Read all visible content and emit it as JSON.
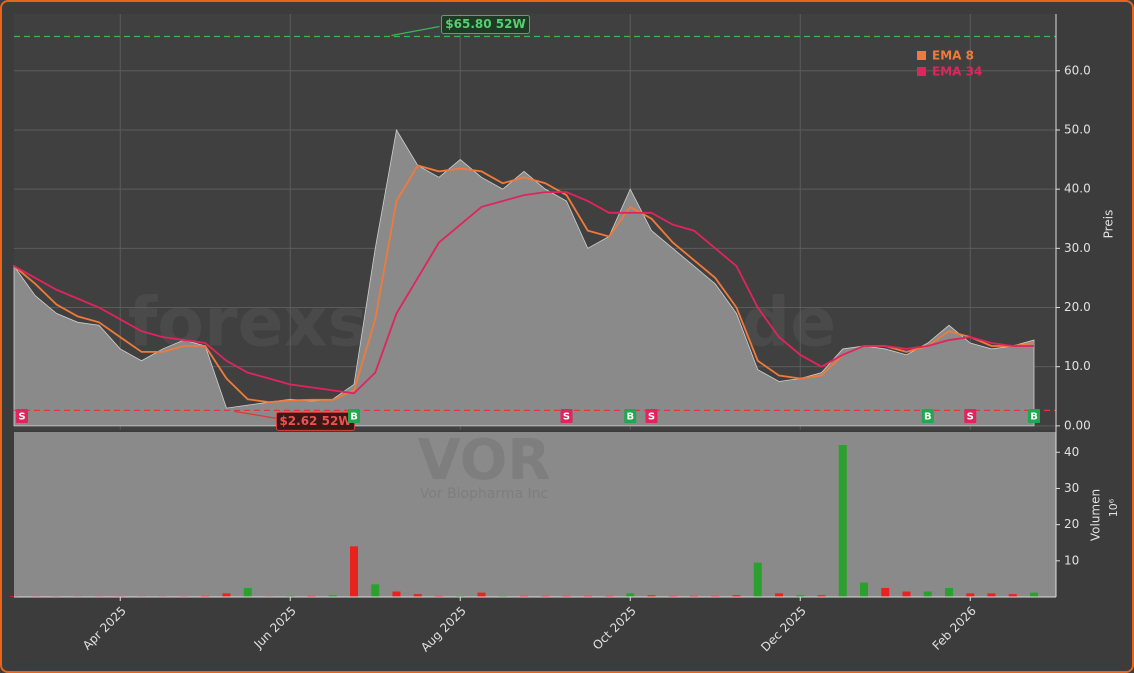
{
  "chart_data": {
    "type": "line",
    "watermark": "forexsignale.trade",
    "ticker": "VOR",
    "company": "Vor Biopharma Inc",
    "categories": [
      null,
      null,
      null,
      null,
      null,
      "Apr 2025",
      null,
      null,
      null,
      null,
      null,
      null,
      null,
      "Jun 2025",
      null,
      null,
      null,
      null,
      null,
      null,
      null,
      "Aug 2025",
      null,
      null,
      null,
      null,
      null,
      null,
      null,
      "Oct 2025",
      null,
      null,
      null,
      null,
      null,
      null,
      null,
      "Dec 2025",
      null,
      null,
      null,
      null,
      null,
      null,
      null,
      "Feb 2026",
      null,
      null,
      null
    ],
    "values": [
      27,
      22,
      19,
      17.5,
      17,
      13,
      11,
      13,
      14.5,
      13.5,
      3,
      3.5,
      4,
      4.5,
      4.2,
      4.5,
      7,
      30,
      50,
      44,
      42,
      45,
      42,
      40,
      43,
      40,
      38,
      30,
      32,
      40,
      33,
      30,
      27,
      24,
      19,
      9.5,
      7.5,
      8,
      9,
      13,
      13.5,
      13,
      12,
      14,
      17,
      14,
      13,
      13.5,
      14.5
    ],
    "color": "#8a8a8a",
    "series": [
      {
        "name": "EMA 8",
        "color": "#f07a3a",
        "values": [
          27,
          24,
          20.5,
          18.5,
          17.5,
          15,
          12.5,
          12.5,
          13.5,
          13.5,
          8,
          4.5,
          4,
          4.3,
          4.4,
          4.4,
          6,
          18,
          38,
          44,
          43,
          43.5,
          43,
          41,
          42,
          41,
          39,
          33,
          32,
          37,
          35,
          31,
          28,
          25,
          20,
          11,
          8.5,
          8,
          8.5,
          12,
          13.5,
          13.5,
          12.5,
          13.5,
          16,
          15,
          13.5,
          13.5,
          14
        ]
      },
      {
        "name": "EMA 34",
        "color": "#e0245e",
        "values": [
          27,
          25,
          23,
          21.5,
          20,
          18,
          16,
          15,
          14.5,
          14,
          11,
          9,
          8,
          7,
          6.5,
          6,
          5.5,
          9,
          19,
          25,
          31,
          34,
          37,
          38,
          39,
          39.5,
          39.5,
          38,
          36,
          36,
          36,
          34,
          33,
          30,
          27,
          20,
          15,
          12,
          10,
          12,
          13.5,
          13.5,
          13,
          13.5,
          14.5,
          15,
          14,
          13.5,
          13.5
        ]
      }
    ],
    "signals": [
      "S",
      null,
      null,
      null,
      null,
      null,
      null,
      null,
      null,
      null,
      null,
      null,
      null,
      null,
      null,
      null,
      "B",
      null,
      null,
      null,
      null,
      null,
      null,
      null,
      null,
      null,
      "S",
      null,
      null,
      "B",
      "S",
      null,
      null,
      null,
      null,
      null,
      null,
      null,
      null,
      null,
      null,
      null,
      null,
      "B",
      null,
      "S",
      null,
      null,
      "B"
    ],
    "high": {
      "value": 65.8,
      "label": "$65.80 52W"
    },
    "low": {
      "value": 2.62,
      "label": "$2.62 52W"
    },
    "ylabel": "Preis",
    "ylim": [
      -0.7,
      69.6
    ],
    "yticks": [
      {
        "value": 0,
        "label": "0.00"
      },
      {
        "value": 10,
        "label": "10.0"
      },
      {
        "value": 20,
        "label": "20.0"
      },
      {
        "value": 30,
        "label": "30.0"
      },
      {
        "value": 40,
        "label": "40.0"
      },
      {
        "value": 50,
        "label": "50.0"
      },
      {
        "value": 60,
        "label": "60.0"
      }
    ],
    "grid": true,
    "legend": "upper right",
    "volume": {
      "ylabel": "Volumen",
      "scale_label": "10⁶",
      "ylim": [
        0,
        45.6
      ],
      "yticks": [
        10,
        20,
        30,
        40
      ],
      "values": [
        0.2,
        0.2,
        0.2,
        0.2,
        0.2,
        0.2,
        0.2,
        0.2,
        0.2,
        0.3,
        1,
        2.5,
        0.2,
        0.3,
        0.3,
        0.5,
        14,
        3.5,
        1.5,
        0.8,
        0.3,
        0.3,
        1.2,
        0.3,
        0.3,
        0.3,
        0.3,
        0.3,
        0.3,
        1,
        0.5,
        0.3,
        0.3,
        0.3,
        0.5,
        9.5,
        1,
        0.5,
        0.5,
        42,
        4,
        2.5,
        1.5,
        1.5,
        2.5,
        1,
        1,
        0.8,
        1.2
      ],
      "colors": [
        "#e8221c",
        "#e8221c",
        "#e8221c",
        "#e8221c",
        "#e8221c",
        "#e8221c",
        "#e8221c",
        "#e8221c",
        "#e8221c",
        "#e8221c",
        "#e8221c",
        "#2ca02c",
        "#e8221c",
        "#2ca02c",
        "#e8221c",
        "#2ca02c",
        "#e8221c",
        "#2ca02c",
        "#e8221c",
        "#e8221c",
        "#e8221c",
        "#2ca02c",
        "#e8221c",
        "#2ca02c",
        "#e8221c",
        "#e8221c",
        "#e8221c",
        "#e8221c",
        "#e8221c",
        "#2ca02c",
        "#e8221c",
        "#e8221c",
        "#e8221c",
        "#e8221c",
        "#e8221c",
        "#2ca02c",
        "#e8221c",
        "#2ca02c",
        "#e8221c",
        "#2ca02c",
        "#2ca02c",
        "#e8221c",
        "#e8221c",
        "#2ca02c",
        "#2ca02c",
        "#e8221c",
        "#e8221c",
        "#e8221c",
        "#2ca02c"
      ]
    }
  }
}
